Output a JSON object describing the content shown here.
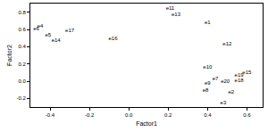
{
  "chart_data": {
    "type": "scatter",
    "x_label": "Factor1",
    "y_label": "Factor2",
    "labels": [
      "e6",
      "e4",
      "e5",
      "e14",
      "e17",
      "e16",
      "e11",
      "e13",
      "e1",
      "e12",
      "e10",
      "e9",
      "e8",
      "e3",
      "e7",
      "e20",
      "e19",
      "e18",
      "e15",
      "e2"
    ],
    "x": [
      -0.47,
      -0.45,
      -0.41,
      -0.37,
      -0.3,
      -0.08,
      0.21,
      0.24,
      0.4,
      0.5,
      0.4,
      0.4,
      0.39,
      0.48,
      0.44,
      0.49,
      0.56,
      0.56,
      0.6,
      0.52
    ],
    "values": [
      0.61,
      0.64,
      0.53,
      0.47,
      0.58,
      0.49,
      0.84,
      0.77,
      0.68,
      0.43,
      0.16,
      -0.03,
      -0.11,
      -0.25,
      0.03,
      0.0,
      0.07,
      0.01,
      0.1,
      -0.13
    ],
    "xlim": [
      -0.5,
      0.68
    ],
    "ylim": [
      -0.3,
      0.9
    ],
    "xticks": [
      {
        "value": -0.4,
        "label": "-0.4"
      },
      {
        "value": -0.2,
        "label": "-0.2"
      },
      {
        "value": 0,
        "label": "0.0"
      },
      {
        "value": 0.2,
        "label": "0.2"
      },
      {
        "value": 0.4,
        "label": "0.4"
      },
      {
        "value": 0.6,
        "label": "0.6"
      }
    ],
    "yticks": [
      {
        "value": -0.2,
        "label": "-0.2"
      },
      {
        "value": 0,
        "label": "0.0"
      },
      {
        "value": 0.2,
        "label": "0.2"
      },
      {
        "value": 0.4,
        "label": "0.4"
      },
      {
        "value": 0.6,
        "label": "0.6"
      },
      {
        "value": 0.8,
        "label": "0.8"
      }
    ],
    "marker": "none",
    "color": "#000000",
    "grid": false
  }
}
